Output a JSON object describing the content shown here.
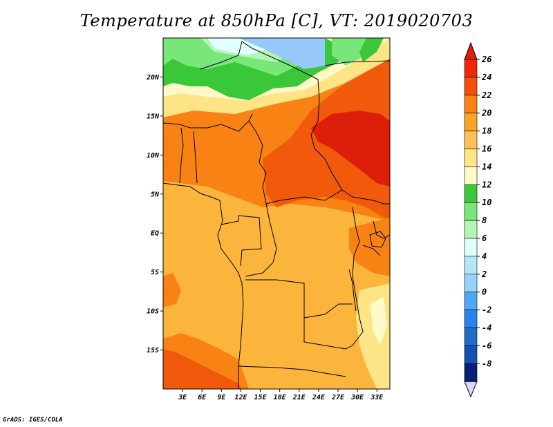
{
  "title": "Temperature at 850hPa [C], VT: 2019020703",
  "credit": "GrADS: IGES/COLA",
  "map": {
    "lon_range": [
      0,
      35
    ],
    "lat_range": [
      -20,
      25
    ],
    "lat_ticks": [
      {
        "value": 20,
        "label": "20N"
      },
      {
        "value": 15,
        "label": "15N"
      },
      {
        "value": 10,
        "label": "10N"
      },
      {
        "value": 5,
        "label": "5N"
      },
      {
        "value": 0,
        "label": "EQ"
      },
      {
        "value": -5,
        "label": "5S"
      },
      {
        "value": -10,
        "label": "10S"
      },
      {
        "value": -15,
        "label": "15S"
      }
    ],
    "lon_ticks": [
      {
        "value": 3,
        "label": "3E"
      },
      {
        "value": 6,
        "label": "6E"
      },
      {
        "value": 9,
        "label": "9E"
      },
      {
        "value": 12,
        "label": "12E"
      },
      {
        "value": 15,
        "label": "15E"
      },
      {
        "value": 18,
        "label": "18E"
      },
      {
        "value": 21,
        "label": "21E"
      },
      {
        "value": 24,
        "label": "24E"
      },
      {
        "value": 27,
        "label": "27E"
      },
      {
        "value": 30,
        "label": "30E"
      },
      {
        "value": 33,
        "label": "33E"
      }
    ]
  },
  "colorbar": {
    "levels": [
      {
        "value": "26",
        "color": "#f0280a"
      },
      {
        "value": "24",
        "color": "#f5500a"
      },
      {
        "value": "22",
        "color": "#f88214"
      },
      {
        "value": "20",
        "color": "#fba228"
      },
      {
        "value": "18",
        "color": "#fcc05a"
      },
      {
        "value": "16",
        "color": "#fde486"
      },
      {
        "value": "14",
        "color": "#fffac8"
      },
      {
        "value": "12",
        "color": "#3ac83a"
      },
      {
        "value": "10",
        "color": "#78e678"
      },
      {
        "value": "8",
        "color": "#b4f5b4"
      },
      {
        "value": "6",
        "color": "#e1ffff"
      },
      {
        "value": "4",
        "color": "#b4e6fa"
      },
      {
        "value": "2",
        "color": "#96d2fa"
      },
      {
        "value": "0",
        "color": "#50a5f5"
      },
      {
        "value": "-2",
        "color": "#2882f0"
      },
      {
        "value": "-4",
        "color": "#1e6ec8"
      },
      {
        "value": "-6",
        "color": "#1450b4"
      },
      {
        "value": "-8",
        "color": "#0a1e78"
      }
    ],
    "top_color": "#dc1e0a",
    "bottom_color": "#d8d8f8"
  },
  "colors": {
    "red": "#dc1e0a",
    "dark_orange": "#f05a0a",
    "orange": "#f88214",
    "light_orange": "#fbb43c",
    "yellow": "#fde486",
    "cream": "#fffac8",
    "green": "#3ac83a",
    "light_green": "#78e678",
    "pale_green": "#b4f5b4",
    "light_blue": "#96c8fa",
    "pale_cyan": "#e1ffff"
  }
}
